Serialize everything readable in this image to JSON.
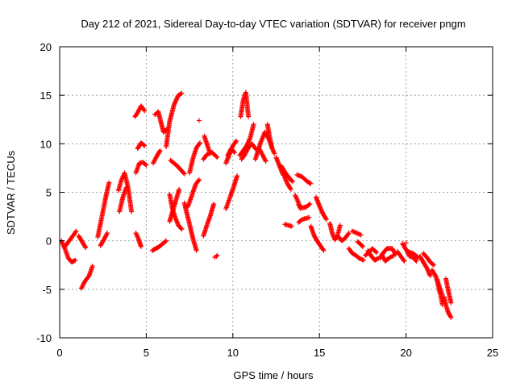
{
  "chart_data": {
    "type": "scatter",
    "title": "Day 212 of 2021, Sidereal Day-to-day VTEC variation (SDTVAR) for receiver pngm",
    "xlabel": "GPS time / hours",
    "ylabel": "SDTVAR / TECUs",
    "xlim": [
      0,
      25
    ],
    "ylim": [
      -10,
      20
    ],
    "xticks": [
      0,
      5,
      10,
      15,
      20,
      25
    ],
    "yticks": [
      -10,
      -5,
      0,
      5,
      10,
      15,
      20
    ],
    "xtick_labels": [
      "0",
      "5",
      "10",
      "15",
      "20",
      "25"
    ],
    "ytick_labels": [
      "-10",
      "-5",
      "0",
      "5",
      "10",
      "15",
      "20"
    ],
    "grid": true,
    "marker": "+",
    "color": "#ff0000",
    "series": [
      {
        "name": "SDTVAR",
        "arcs": [
          {
            "x": [
              0.1,
              0.3,
              0.5,
              0.7,
              0.9
            ],
            "y": [
              0.0,
              -0.8,
              -1.8,
              -2.2,
              -2.0
            ]
          },
          {
            "x": [
              0.3,
              0.55,
              0.8,
              0.95
            ],
            "y": [
              -0.6,
              0.0,
              0.6,
              1.0
            ]
          },
          {
            "x": [
              1.25,
              1.45,
              1.7,
              1.9
            ],
            "y": [
              -4.9,
              -4.2,
              -3.6,
              -2.6
            ]
          },
          {
            "x": [
              1.1,
              1.3,
              1.5
            ],
            "y": [
              0.5,
              -0.1,
              -0.7
            ]
          },
          {
            "x": [
              2.2,
              2.45,
              2.65,
              2.85
            ],
            "y": [
              0.4,
              2.6,
              4.4,
              6.0
            ]
          },
          {
            "x": [
              2.35,
              2.55,
              2.75
            ],
            "y": [
              -0.5,
              0.1,
              0.8
            ]
          },
          {
            "x": [
              3.4,
              3.55,
              3.75,
              3.95,
              4.15
            ],
            "y": [
              5.2,
              6.2,
              7.0,
              5.5,
              3.0
            ]
          },
          {
            "x": [
              3.45,
              3.65,
              3.85
            ],
            "y": [
              3.0,
              4.5,
              5.5
            ]
          },
          {
            "x": [
              4.4,
              4.55,
              4.7
            ],
            "y": [
              0.8,
              0.2,
              -0.6
            ]
          },
          {
            "x": [
              4.35,
              4.5,
              4.7,
              4.9
            ],
            "y": [
              12.8,
              13.2,
              13.9,
              13.4
            ]
          },
          {
            "x": [
              4.5,
              4.7,
              4.9
            ],
            "y": [
              9.5,
              10.1,
              9.8
            ]
          },
          {
            "x": [
              4.4,
              4.6,
              4.8,
              5.0
            ],
            "y": [
              7.0,
              8.0,
              8.1,
              7.8
            ]
          },
          {
            "x": [
              5.35,
              5.55,
              5.75,
              5.95,
              6.15
            ],
            "y": [
              -1.0,
              -0.8,
              -0.6,
              -0.3,
              0.0
            ]
          },
          {
            "x": [
              5.5,
              5.7,
              5.85,
              6.0,
              6.2
            ],
            "y": [
              13.0,
              13.3,
              12.2,
              11.2,
              11.5
            ]
          },
          {
            "x": [
              5.4,
              5.6,
              5.8
            ],
            "y": [
              8.0,
              8.7,
              9.3
            ]
          },
          {
            "x": [
              6.15,
              6.35,
              6.6,
              6.85,
              7.05
            ],
            "y": [
              9.7,
              12.3,
              14.0,
              15.0,
              15.2
            ]
          },
          {
            "x": [
              6.4,
              6.6,
              6.8,
              7.0,
              7.2
            ],
            "y": [
              8.3,
              8.0,
              7.7,
              7.3,
              6.9
            ]
          },
          {
            "x": [
              6.35,
              6.5,
              6.65,
              6.85,
              7.05
            ],
            "y": [
              4.8,
              3.4,
              2.5,
              1.6,
              1.2
            ]
          },
          {
            "x": [
              6.35,
              6.5,
              6.7,
              6.9
            ],
            "y": [
              2.0,
              2.9,
              4.1,
              5.3
            ]
          },
          {
            "x": [
              7.2,
              7.35,
              7.5,
              7.7,
              7.9
            ],
            "y": [
              3.9,
              2.8,
              1.7,
              0.2,
              -1.0
            ]
          },
          {
            "x": [
              7.4,
              7.6,
              7.85,
              8.05
            ],
            "y": [
              3.5,
              4.5,
              5.8,
              6.3
            ]
          },
          {
            "x": [
              7.5,
              7.7,
              7.9,
              8.1
            ],
            "y": [
              7.0,
              8.5,
              9.6,
              10.1
            ]
          },
          {
            "x": [
              8.3,
              8.5,
              8.7,
              8.9
            ],
            "y": [
              0.5,
              1.6,
              2.6,
              3.8
            ]
          },
          {
            "x": [
              8.35,
              8.5,
              8.65
            ],
            "y": [
              10.8,
              10.0,
              9.2
            ]
          },
          {
            "x": [
              8.3,
              8.5,
              8.8,
              9.1
            ],
            "y": [
              8.4,
              8.9,
              9.1,
              8.6
            ]
          },
          {
            "x": [
              9.6,
              9.8,
              10.0,
              10.25
            ],
            "y": [
              3.3,
              4.3,
              5.3,
              6.7
            ]
          },
          {
            "x": [
              9.6,
              9.8,
              10.0,
              10.2
            ],
            "y": [
              8.0,
              8.9,
              9.8,
              10.3
            ]
          },
          {
            "x": [
              9.7,
              9.9,
              10.1
            ],
            "y": [
              8.8,
              9.5,
              9.1
            ]
          },
          {
            "x": [
              10.45,
              10.6,
              10.75,
              10.9
            ],
            "y": [
              12.8,
              14.5,
              15.3,
              12.8
            ]
          },
          {
            "x": [
              10.4,
              10.6,
              10.8,
              11.0,
              11.2
            ],
            "y": [
              8.8,
              9.3,
              9.8,
              10.6,
              12.0
            ]
          },
          {
            "x": [
              10.5,
              10.7,
              10.9,
              11.1,
              11.35
            ],
            "y": [
              8.4,
              8.9,
              9.6,
              10.0,
              9.4
            ]
          },
          {
            "x": [
              11.3,
              11.6,
              11.85,
              12.05,
              12.25
            ],
            "y": [
              8.4,
              10.1,
              11.2,
              10.6,
              9.7
            ]
          },
          {
            "x": [
              11.5,
              11.7,
              11.9
            ],
            "y": [
              9.6,
              8.9,
              8.2
            ]
          },
          {
            "x": [
              12.0,
              12.1,
              12.25,
              12.4
            ],
            "y": [
              12.0,
              10.9,
              9.6,
              9.0
            ]
          },
          {
            "x": [
              12.5,
              12.7,
              12.9,
              13.1
            ],
            "y": [
              8.6,
              7.7,
              6.8,
              6.6
            ]
          },
          {
            "x": [
              12.8,
              13.0,
              13.2,
              13.45
            ],
            "y": [
              7.7,
              7.1,
              6.6,
              6.1
            ]
          },
          {
            "x": [
              13.0,
              13.2,
              13.4
            ],
            "y": [
              1.7,
              1.6,
              1.5
            ]
          },
          {
            "x": [
              13.0,
              13.15,
              13.35
            ],
            "y": [
              6.5,
              5.9,
              5.3
            ]
          },
          {
            "x": [
              13.6,
              13.75,
              13.9
            ],
            "y": [
              4.7,
              4.1,
              3.3
            ]
          },
          {
            "x": [
              13.7,
              14.0,
              14.3,
              14.5
            ],
            "y": [
              6.8,
              6.6,
              6.1,
              5.9
            ]
          },
          {
            "x": [
              13.8,
              14.0,
              14.2,
              14.4
            ],
            "y": [
              1.9,
              2.2,
              2.3,
              2.4
            ]
          },
          {
            "x": [
              13.8,
              14.0,
              14.25,
              14.45
            ],
            "y": [
              3.7,
              3.4,
              3.5,
              3.8
            ]
          },
          {
            "x": [
              14.5,
              14.7,
              14.9,
              15.05,
              15.25
            ],
            "y": [
              1.5,
              0.5,
              -0.1,
              -0.5,
              -1.0
            ]
          },
          {
            "x": [
              14.8,
              15.0,
              15.2,
              15.4
            ],
            "y": [
              4.5,
              3.6,
              2.8,
              2.2
            ]
          },
          {
            "x": [
              15.6,
              15.75,
              15.9,
              16.05,
              16.2
            ],
            "y": [
              1.8,
              0.7,
              0.1,
              0.6,
              1.6
            ]
          },
          {
            "x": [
              16.1,
              16.3,
              16.5,
              16.7
            ],
            "y": [
              0.4,
              0.0,
              0.3,
              0.8
            ]
          },
          {
            "x": [
              16.7,
              16.9,
              17.1,
              17.3,
              17.55
            ],
            "y": [
              -0.8,
              -1.3,
              -1.5,
              -1.8,
              -2.0
            ]
          },
          {
            "x": [
              16.9,
              17.15,
              17.4
            ],
            "y": [
              1.0,
              0.8,
              0.6
            ]
          },
          {
            "x": [
              17.2,
              17.35,
              17.5
            ],
            "y": [
              -0.1,
              -0.3,
              -0.6
            ]
          },
          {
            "x": [
              17.65,
              17.85,
              18.05,
              18.3
            ],
            "y": [
              -1.5,
              -1.2,
              -0.8,
              -1.2
            ]
          },
          {
            "x": [
              17.8,
              18.0,
              18.2,
              18.4
            ],
            "y": [
              -1.0,
              -1.6,
              -2.0,
              -1.8
            ]
          },
          {
            "x": [
              18.5,
              18.7,
              18.9,
              19.2,
              19.4
            ],
            "y": [
              -1.8,
              -1.2,
              -0.8,
              -0.8,
              -1.4
            ]
          },
          {
            "x": [
              18.6,
              18.8,
              19.0,
              19.3
            ],
            "y": [
              -1.4,
              -2.1,
              -1.8,
              -1.5
            ]
          },
          {
            "x": [
              19.5,
              19.7,
              19.9
            ],
            "y": [
              -1.1,
              -1.6,
              -2.1
            ]
          },
          {
            "x": [
              19.8,
              20.0,
              20.2,
              20.4,
              20.6
            ],
            "y": [
              -0.3,
              -0.9,
              -1.6,
              -1.7,
              -2.1
            ]
          },
          {
            "x": [
              20.1,
              20.4,
              20.7
            ],
            "y": [
              -1.1,
              -1.3,
              -1.7
            ]
          },
          {
            "x": [
              20.8,
              21.0,
              21.2,
              21.4
            ],
            "y": [
              -1.6,
              -2.2,
              -2.8,
              -3.6
            ]
          },
          {
            "x": [
              21.0,
              21.2,
              21.4,
              21.6
            ],
            "y": [
              -1.3,
              -1.7,
              -2.2,
              -2.5
            ]
          },
          {
            "x": [
              21.5,
              21.7,
              21.9,
              22.1
            ],
            "y": [
              -3.0,
              -3.6,
              -4.6,
              -5.6
            ]
          },
          {
            "x": [
              21.8,
              21.9,
              22.0,
              22.1
            ],
            "y": [
              -4.0,
              -5.0,
              -5.6,
              -6.6
            ]
          },
          {
            "x": [
              22.2,
              22.3,
              22.4,
              22.5,
              22.6
            ],
            "y": [
              -5.8,
              -6.6,
              -7.2,
              -7.6,
              -7.9
            ]
          },
          {
            "x": [
              22.3,
              22.4,
              22.5,
              22.6
            ],
            "y": [
              -3.9,
              -4.8,
              -5.6,
              -6.4
            ]
          }
        ],
        "points": [
          {
            "x": 8.05,
            "y": 12.4
          },
          {
            "x": 9.05,
            "y": -1.6
          },
          {
            "x": 8.95,
            "y": -1.7
          },
          {
            "x": 9.1,
            "y": -1.5
          },
          {
            "x": 20.0,
            "y": -0.2
          }
        ]
      }
    ]
  }
}
